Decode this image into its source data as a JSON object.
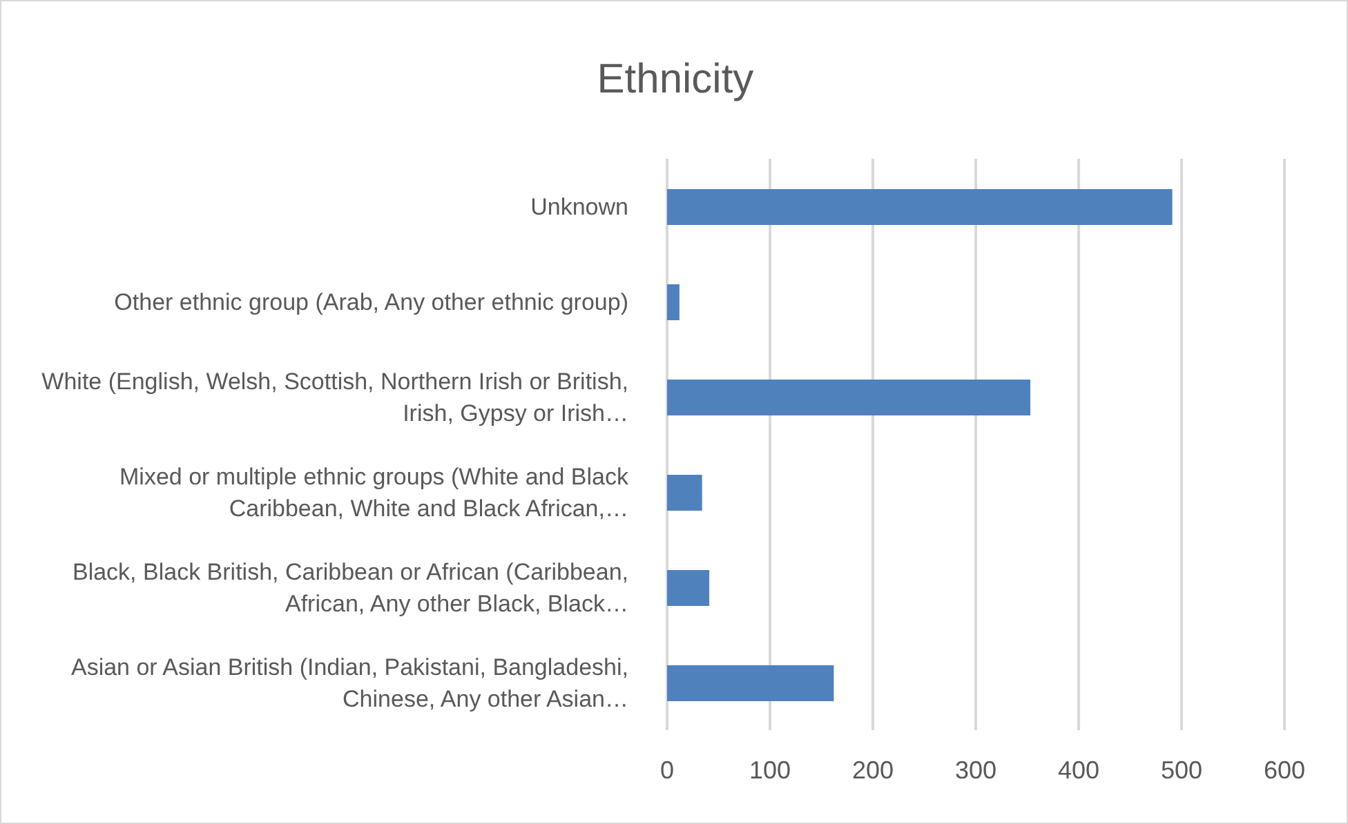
{
  "chart_data": {
    "type": "bar",
    "orientation": "horizontal",
    "title": "Ethnicity",
    "categories": [
      "Unknown",
      "Other ethnic group (Arab, Any other ethnic group)",
      "White (English, Welsh, Scottish, Northern Irish or British, Irish, Gypsy or Irish…",
      "Mixed or multiple ethnic groups (White and Black Caribbean, White and Black African,…",
      "Black, Black British, Caribbean or African (Caribbean, African, Any other Black, Black…",
      "Asian or Asian British (Indian, Pakistani, Bangladeshi, Chinese, Any other Asian…"
    ],
    "values": [
      491,
      12,
      353,
      34,
      41,
      162
    ],
    "color": "#4f81bd",
    "xlim": [
      0,
      600
    ],
    "xticks": [
      0,
      100,
      200,
      300,
      400,
      500,
      600
    ],
    "grid": "x",
    "legend": false
  }
}
